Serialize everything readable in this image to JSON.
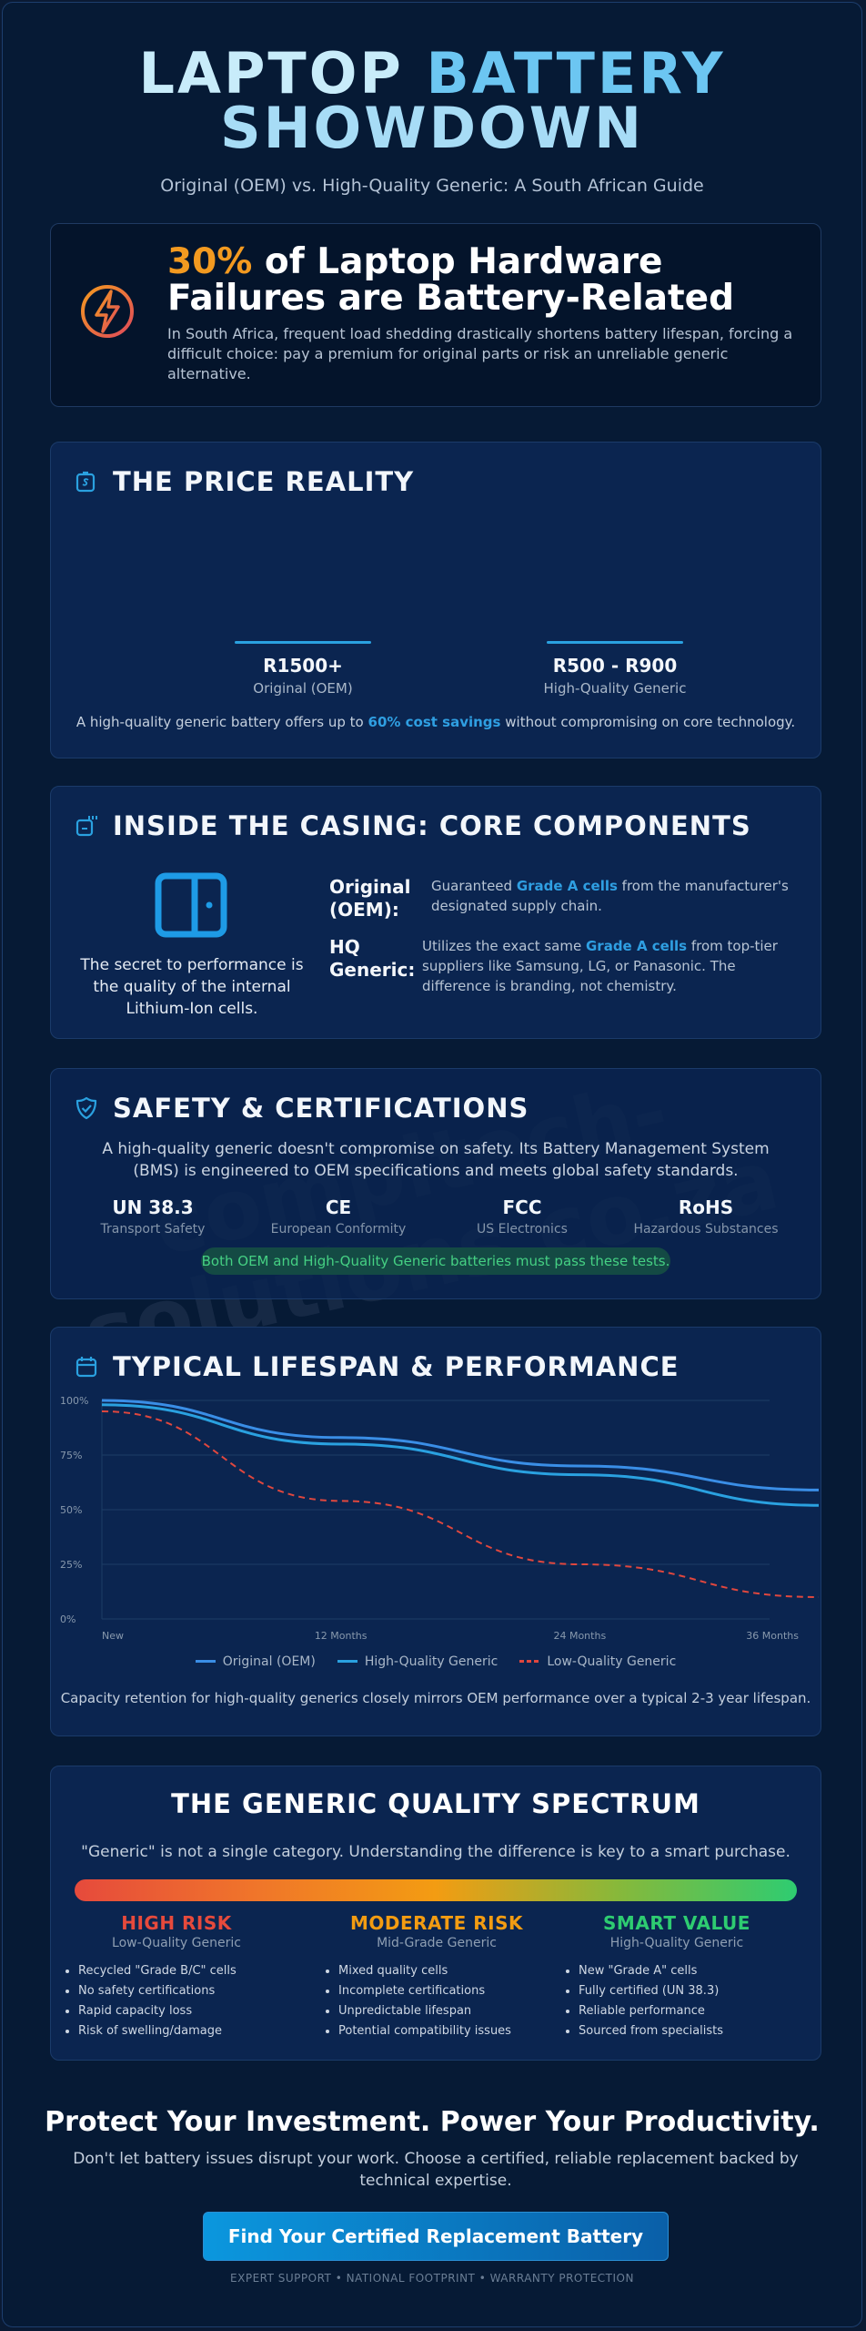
{
  "hero": {
    "title_word1": "LAPTOP",
    "title_word2": "BATTERY",
    "title_line2": "SHOWDOWN",
    "subtitle": "Original (OEM) vs. High-Quality Generic: A South African Guide"
  },
  "stat": {
    "percent": "30%",
    "title_rest": " of Laptop Hardware Failures are Battery-Related",
    "description": "In South Africa, frequent load shedding drastically shortens battery lifespan, forcing a difficult choice: pay a premium for original parts or risk an unreliable generic alternative.",
    "icon": "lightning-bolt-icon"
  },
  "price": {
    "heading": "THE PRICE REALITY",
    "icon": "price-tag-icon",
    "options": [
      {
        "value": "R1500+",
        "label": "Original (OEM)"
      },
      {
        "value": "R500 - R900",
        "label": "High-Quality Generic"
      }
    ],
    "note_pre": "A high-quality generic battery offers up to ",
    "note_highlight": "60% cost savings",
    "note_post": " without compromising on core technology."
  },
  "components": {
    "heading": "INSIDE THE CASING: CORE COMPONENTS",
    "icon": "chip-icon",
    "caption": "The secret to performance is the quality of the internal Lithium-Ion cells.",
    "rows": [
      {
        "key": "Original (OEM):",
        "pre": "Guaranteed ",
        "highlight": "Grade A cells",
        "post": " from the manufacturer's designated supply chain."
      },
      {
        "key": "HQ Generic:",
        "pre": "Utilizes the exact same ",
        "highlight": "Grade A cells",
        "post": " from top-tier suppliers like Samsung, LG, or Panasonic. The difference is branding, not chemistry."
      }
    ]
  },
  "safety": {
    "heading": "SAFETY & CERTIFICATIONS",
    "icon": "shield-check-icon",
    "intro": "A high-quality generic doesn't compromise on safety. Its Battery Management System (BMS) is engineered to OEM specifications and meets global safety standards.",
    "certs": [
      {
        "name": "UN 38.3",
        "desc": "Transport Safety"
      },
      {
        "name": "CE",
        "desc": "European Conformity"
      },
      {
        "name": "FCC",
        "desc": "US Electronics"
      },
      {
        "name": "RoHS",
        "desc": "Hazardous Substances"
      }
    ],
    "pill": "Both OEM and High-Quality Generic batteries must pass these tests."
  },
  "watermark": "compitech-\nsolutions.co.za",
  "lifespan": {
    "heading": "TYPICAL LIFESPAN & PERFORMANCE",
    "icon": "calendar-icon",
    "caption": "Capacity retention for high-quality generics closely mirrors OEM performance over a typical 2-3 year lifespan."
  },
  "chart_data": {
    "type": "line",
    "x": [
      "New",
      "12 Months",
      "24 Months",
      "36 Months"
    ],
    "y_ticks": [
      "100%",
      "75%",
      "50%",
      "25%",
      "0%"
    ],
    "ylim": [
      0,
      100
    ],
    "series": [
      {
        "name": "Original (OEM)",
        "values": [
          100,
          83,
          70,
          59
        ],
        "color": "#3a8ee6",
        "style": "solid"
      },
      {
        "name": "High-Quality Generic",
        "values": [
          98,
          80,
          66,
          52
        ],
        "color": "#2aa1e0",
        "style": "solid"
      },
      {
        "name": "Low-Quality Generic",
        "values": [
          95,
          54,
          25,
          10
        ],
        "color": "#e0473e",
        "style": "dashed"
      }
    ],
    "grid": true,
    "legend_position": "bottom"
  },
  "spectrum": {
    "title": "THE GENERIC QUALITY SPECTRUM",
    "intro": "\"Generic\" is not a single category. Understanding the difference is key to a smart purchase.",
    "tiers": [
      {
        "name": "HIGH RISK",
        "sub": "Low-Quality Generic",
        "color": "#e64a3c",
        "items": [
          "Recycled \"Grade B/C\" cells",
          "No safety certifications",
          "Rapid capacity loss",
          "Risk of swelling/damage"
        ]
      },
      {
        "name": "MODERATE RISK",
        "sub": "Mid-Grade Generic",
        "color": "#f39c12",
        "items": [
          "Mixed quality cells",
          "Incomplete certifications",
          "Unpredictable lifespan",
          "Potential compatibility issues"
        ]
      },
      {
        "name": "SMART VALUE",
        "sub": "High-Quality Generic",
        "color": "#2ecc71",
        "items": [
          "New \"Grade A\" cells",
          "Fully certified (UN 38.3)",
          "Reliable performance",
          "Sourced from specialists"
        ]
      }
    ]
  },
  "cta": {
    "title": "Protect Your Investment. Power Your Productivity.",
    "subtitle": "Don't let battery issues disrupt your work. Choose a certified, reliable replacement backed by technical expertise.",
    "button": "Find Your Certified Replacement Battery",
    "footer": "EXPERT SUPPORT • NATIONAL FOOTPRINT • WARRANTY PROTECTION"
  }
}
